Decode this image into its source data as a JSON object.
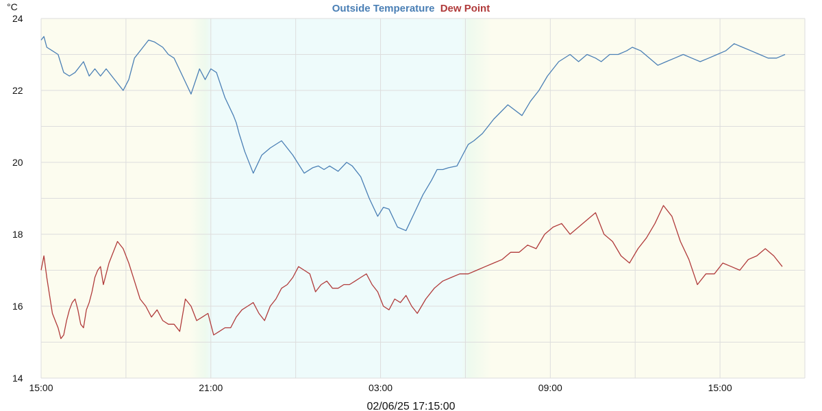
{
  "chart_data": {
    "type": "line",
    "title_parts": [
      "Outside Temperature",
      "Dew Point"
    ],
    "ylabel": "°C",
    "ylim": [
      14,
      24
    ],
    "y_ticks": [
      "14",
      "16",
      "18",
      "20",
      "22",
      "24"
    ],
    "x_ticks": [
      "15:00",
      "21:00",
      "03:00",
      "09:00",
      "15:00"
    ],
    "x_range_hours": [
      0,
      27
    ],
    "grid": true,
    "footer": "02/06/25 17:15:00",
    "colors": {
      "temperature": "#4a7fb5",
      "dew_point": "#b03a3a",
      "day_band": "#fcfcef",
      "night_band": "#eefbfb",
      "twilight": "#eefaee",
      "grid": "#dddddd"
    },
    "series": [
      {
        "name": "Outside Temperature",
        "x": [
          0,
          0.1,
          0.2,
          0.4,
          0.6,
          0.8,
          1.0,
          1.2,
          1.5,
          1.7,
          1.9,
          2.1,
          2.3,
          2.5,
          2.7,
          2.9,
          3.1,
          3.3,
          3.6,
          3.8,
          4.0,
          4.3,
          4.5,
          4.7,
          5.0,
          5.3,
          5.6,
          5.8,
          6.0,
          6.2,
          6.5,
          6.8,
          6.9,
          7.0,
          7.2,
          7.5,
          7.8,
          8.1,
          8.5,
          8.9,
          9.3,
          9.6,
          9.8,
          10.0,
          10.2,
          10.5,
          10.8,
          11.0,
          11.3,
          11.6,
          11.9,
          12.1,
          12.3,
          12.6,
          12.9,
          13.2,
          13.5,
          13.8,
          14.0,
          14.2,
          14.4,
          14.7,
          14.9,
          15.1,
          15.3,
          15.6,
          15.8,
          16.0,
          16.5,
          17.0,
          17.3,
          17.6,
          17.9,
          18.3,
          18.7,
          19.0,
          19.3,
          19.6,
          19.8,
          20.1,
          20.4,
          20.7,
          20.9,
          21.2,
          21.5,
          21.8,
          22.1,
          22.4,
          22.7,
          23.0,
          23.3,
          23.6,
          23.9,
          24.2,
          24.5,
          24.8,
          25.1,
          25.4,
          25.7,
          26.0,
          26.3
        ],
        "values": [
          23.4,
          23.5,
          23.2,
          23.1,
          23.0,
          22.5,
          22.4,
          22.5,
          22.8,
          22.4,
          22.6,
          22.4,
          22.6,
          22.4,
          22.2,
          22.0,
          22.3,
          22.9,
          23.2,
          23.4,
          23.35,
          23.2,
          23.0,
          22.9,
          22.4,
          21.9,
          22.6,
          22.3,
          22.6,
          22.5,
          21.8,
          21.3,
          21.1,
          20.8,
          20.3,
          19.7,
          20.2,
          20.4,
          20.6,
          20.2,
          19.7,
          19.85,
          19.9,
          19.8,
          19.9,
          19.75,
          20.0,
          19.9,
          19.6,
          19.0,
          18.5,
          18.75,
          18.7,
          18.2,
          18.1,
          18.6,
          19.1,
          19.5,
          19.8,
          19.8,
          19.85,
          19.9,
          20.2,
          20.5,
          20.6,
          20.8,
          21.0,
          21.2,
          21.6,
          21.3,
          21.7,
          22.0,
          22.4,
          22.8,
          23.0,
          22.8,
          23.0,
          22.9,
          22.8,
          23.0,
          23.0,
          23.1,
          23.2,
          23.1,
          22.9,
          22.7,
          22.8,
          22.9,
          23.0,
          22.9,
          22.8,
          22.9,
          23.0,
          23.1,
          23.3,
          23.2,
          23.1,
          23.0,
          22.9,
          22.9,
          23.0
        ]
      },
      {
        "name": "Dew Point",
        "x": [
          0,
          0.1,
          0.2,
          0.3,
          0.4,
          0.5,
          0.6,
          0.7,
          0.8,
          0.9,
          1.0,
          1.1,
          1.2,
          1.3,
          1.4,
          1.5,
          1.6,
          1.7,
          1.8,
          1.9,
          2.0,
          2.1,
          2.2,
          2.3,
          2.4,
          2.5,
          2.7,
          2.9,
          3.1,
          3.3,
          3.5,
          3.7,
          3.9,
          4.1,
          4.3,
          4.5,
          4.7,
          4.9,
          5.1,
          5.3,
          5.5,
          5.7,
          5.9,
          6.1,
          6.3,
          6.5,
          6.7,
          6.9,
          7.1,
          7.3,
          7.5,
          7.7,
          7.9,
          8.1,
          8.3,
          8.5,
          8.7,
          8.9,
          9.1,
          9.3,
          9.5,
          9.7,
          9.9,
          10.1,
          10.3,
          10.5,
          10.7,
          10.9,
          11.1,
          11.3,
          11.5,
          11.7,
          11.9,
          12.1,
          12.3,
          12.5,
          12.7,
          12.9,
          13.1,
          13.3,
          13.6,
          13.9,
          14.2,
          14.5,
          14.8,
          15.1,
          15.4,
          15.7,
          16.0,
          16.3,
          16.6,
          16.9,
          17.2,
          17.5,
          17.8,
          18.1,
          18.4,
          18.7,
          19.0,
          19.3,
          19.6,
          19.9,
          20.2,
          20.5,
          20.8,
          21.1,
          21.4,
          21.7,
          22.0,
          22.3,
          22.6,
          22.9,
          23.2,
          23.5,
          23.8,
          24.1,
          24.4,
          24.7,
          25.0,
          25.3,
          25.6,
          25.9,
          26.2
        ],
        "values": [
          17.0,
          17.4,
          16.8,
          16.3,
          15.8,
          15.6,
          15.4,
          15.1,
          15.2,
          15.6,
          15.9,
          16.1,
          16.2,
          15.9,
          15.5,
          15.4,
          15.9,
          16.1,
          16.4,
          16.8,
          17.0,
          17.1,
          16.6,
          16.9,
          17.2,
          17.4,
          17.8,
          17.6,
          17.2,
          16.7,
          16.2,
          16.0,
          15.7,
          15.9,
          15.6,
          15.5,
          15.5,
          15.3,
          16.2,
          16.0,
          15.6,
          15.7,
          15.8,
          15.2,
          15.3,
          15.4,
          15.4,
          15.7,
          15.9,
          16.0,
          16.1,
          15.8,
          15.6,
          16.0,
          16.2,
          16.5,
          16.6,
          16.8,
          17.1,
          17.0,
          16.9,
          16.4,
          16.6,
          16.7,
          16.5,
          16.5,
          16.6,
          16.6,
          16.7,
          16.8,
          16.9,
          16.6,
          16.4,
          16.0,
          15.9,
          16.2,
          16.1,
          16.3,
          16.0,
          15.8,
          16.2,
          16.5,
          16.7,
          16.8,
          16.9,
          16.9,
          17.0,
          17.1,
          17.2,
          17.3,
          17.5,
          17.5,
          17.7,
          17.6,
          18.0,
          18.2,
          18.3,
          18.0,
          18.2,
          18.4,
          18.6,
          18.0,
          17.8,
          17.4,
          17.2,
          17.6,
          17.9,
          18.3,
          18.8,
          18.5,
          17.8,
          17.3,
          16.6,
          16.9,
          16.9,
          17.2,
          17.1,
          17.0,
          17.3,
          17.4,
          17.6,
          17.4,
          17.1
        ]
      }
    ]
  }
}
